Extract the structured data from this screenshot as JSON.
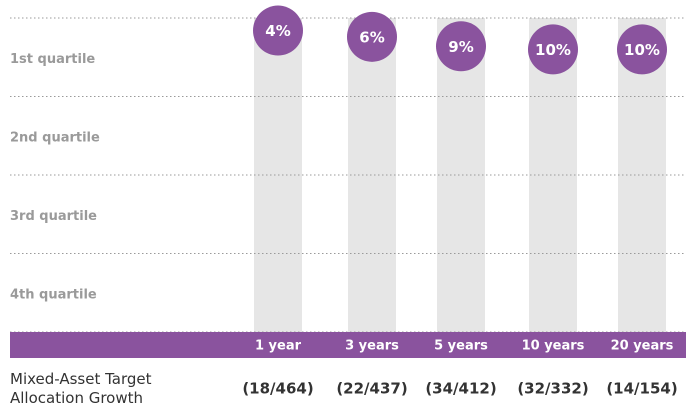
{
  "chart_data": {
    "type": "rank",
    "categories": [
      "1 year",
      "3 years",
      "5 years",
      "10 years",
      "20 years"
    ],
    "values": [
      4,
      6,
      9,
      10,
      10
    ],
    "value_labels": [
      "4%",
      "6%",
      "9%",
      "10%",
      "10%"
    ],
    "rank_labels": [
      "(18/464)",
      "(22/437)",
      "(34/412)",
      "(32/332)",
      "(14/154)"
    ],
    "fund_label": "Mixed-Asset Target Allocation Growth",
    "quartile_labels": [
      "1st quartile",
      "2nd quartile",
      "3rd quartile",
      "4th quartile"
    ],
    "ylim": [
      0,
      100
    ],
    "yticks": [
      0,
      25,
      50,
      75,
      100
    ],
    "color": "#8a539e",
    "column_color": "#e6e6e6"
  }
}
